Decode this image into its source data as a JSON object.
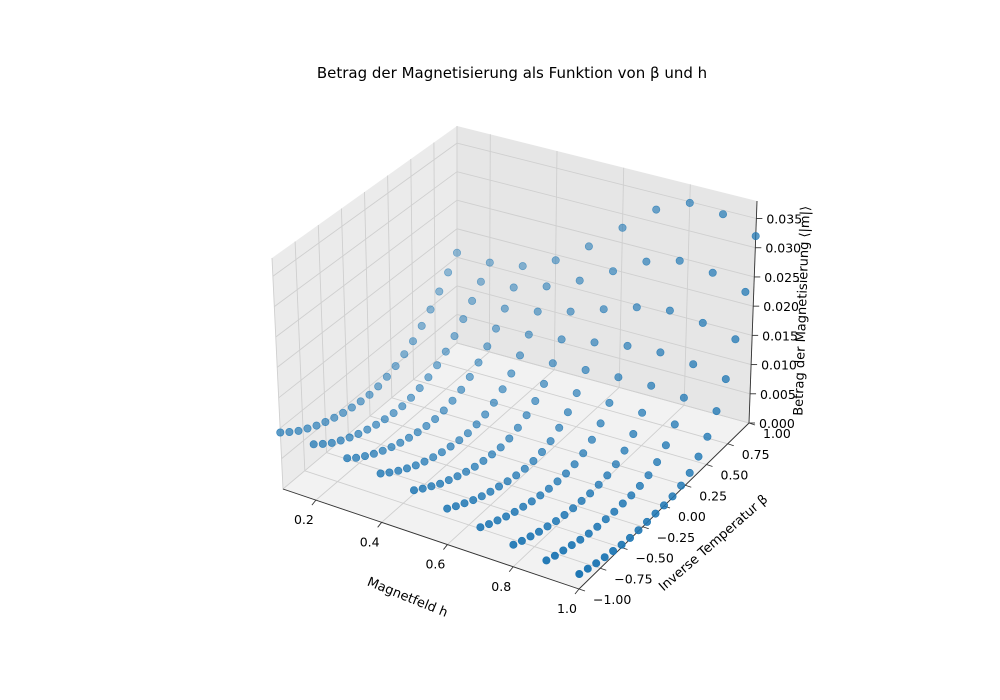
{
  "chart_data": {
    "type": "scatter",
    "projection": "3d",
    "title": "Betrag der Magnetisierung als Funktion von β und h",
    "xlabel": "Magnetfeld h",
    "ylabel": "Inverse Temperatur β",
    "zlabel": "Betrag der Magnetisierung ⟨|m|⟩",
    "xlim": [
      0.1,
      1.0
    ],
    "ylim": [
      -1.0,
      1.0
    ],
    "zlim": [
      0.0,
      0.038
    ],
    "xticks": [
      "0.2",
      "0.4",
      "0.6",
      "0.8",
      "1.0"
    ],
    "yticks": [
      "−1.00",
      "−0.75",
      "−0.50",
      "−0.25",
      "0.00",
      "0.25",
      "0.50",
      "0.75",
      "1.00"
    ],
    "zticks": [
      "0.000",
      "0.005",
      "0.010",
      "0.015",
      "0.020",
      "0.025",
      "0.030",
      "0.035"
    ],
    "grid": true,
    "marker_color": "#1f77b4",
    "h_values": [
      0.1,
      0.2,
      0.3,
      0.4,
      0.5,
      0.6,
      0.7,
      0.8,
      0.9,
      1.0
    ],
    "beta_values": [
      -1.0,
      -0.9,
      -0.8,
      -0.7,
      -0.6,
      -0.5,
      -0.4,
      -0.3,
      -0.2,
      -0.1,
      0.0,
      0.1,
      0.2,
      0.3,
      0.4,
      0.5,
      0.6,
      0.7,
      0.8,
      0.9,
      1.0
    ],
    "m_abs": [
      [
        0.0093,
        0.0082,
        0.0072,
        0.0064,
        0.0057,
        0.0051,
        0.0046,
        0.0042,
        0.0039,
        0.0037,
        0.0036,
        0.0038,
        0.0042,
        0.0048,
        0.0056,
        0.0066,
        0.008,
        0.0096,
        0.0115,
        0.0136,
        0.0158
      ],
      [
        0.009,
        0.0079,
        0.0069,
        0.0061,
        0.0054,
        0.0048,
        0.0043,
        0.0039,
        0.0036,
        0.0034,
        0.0033,
        0.0035,
        0.0039,
        0.0045,
        0.0053,
        0.0064,
        0.0078,
        0.0095,
        0.0114,
        0.0135,
        0.0156
      ],
      [
        0.0084,
        0.0073,
        0.0064,
        0.0056,
        0.0049,
        0.0043,
        0.0038,
        0.0034,
        0.0031,
        0.0029,
        0.0028,
        0.003,
        0.0034,
        0.004,
        0.0049,
        0.0061,
        0.0076,
        0.0094,
        0.0116,
        0.014,
        0.0165
      ],
      [
        0.0076,
        0.0066,
        0.0057,
        0.0049,
        0.0042,
        0.0036,
        0.0031,
        0.0027,
        0.0024,
        0.0022,
        0.0021,
        0.0023,
        0.0027,
        0.0034,
        0.0044,
        0.0058,
        0.0076,
        0.0099,
        0.0126,
        0.0157,
        0.019
      ],
      [
        0.0066,
        0.0057,
        0.0049,
        0.0041,
        0.0035,
        0.0029,
        0.0024,
        0.002,
        0.0017,
        0.0015,
        0.0014,
        0.0016,
        0.0021,
        0.0029,
        0.004,
        0.0056,
        0.0078,
        0.0106,
        0.0141,
        0.0182,
        0.0229
      ],
      [
        0.0054,
        0.0046,
        0.0039,
        0.0032,
        0.0026,
        0.0021,
        0.0017,
        0.0013,
        0.001,
        0.0008,
        0.0008,
        0.001,
        0.0015,
        0.0024,
        0.0037,
        0.0056,
        0.0082,
        0.0116,
        0.016,
        0.0213,
        0.0276
      ],
      [
        0.0042,
        0.0035,
        0.0029,
        0.0023,
        0.0018,
        0.0014,
        0.001,
        0.0007,
        0.0005,
        0.0004,
        0.0004,
        0.0006,
        0.0011,
        0.002,
        0.0034,
        0.0055,
        0.0085,
        0.0125,
        0.0178,
        0.0244,
        0.0322
      ],
      [
        0.0032,
        0.0026,
        0.0021,
        0.0016,
        0.0012,
        0.0008,
        0.0005,
        0.0003,
        0.0002,
        0.0001,
        0.0002,
        0.0004,
        0.0009,
        0.0018,
        0.0032,
        0.0054,
        0.0086,
        0.0129,
        0.0187,
        0.026,
        0.0348
      ],
      [
        0.0025,
        0.002,
        0.0016,
        0.0012,
        0.0008,
        0.0005,
        0.0003,
        0.0002,
        0.0001,
        0.0001,
        0.0001,
        0.0003,
        0.0007,
        0.0015,
        0.0029,
        0.005,
        0.0081,
        0.0124,
        0.0181,
        0.0254,
        0.0343
      ],
      [
        0.0021,
        0.0017,
        0.0013,
        0.001,
        0.0007,
        0.0004,
        0.0002,
        0.0001,
        0.0001,
        0.0001,
        0.0001,
        0.0002,
        0.0006,
        0.0013,
        0.0026,
        0.0045,
        0.0074,
        0.0114,
        0.0168,
        0.0236,
        0.032
      ]
    ]
  }
}
